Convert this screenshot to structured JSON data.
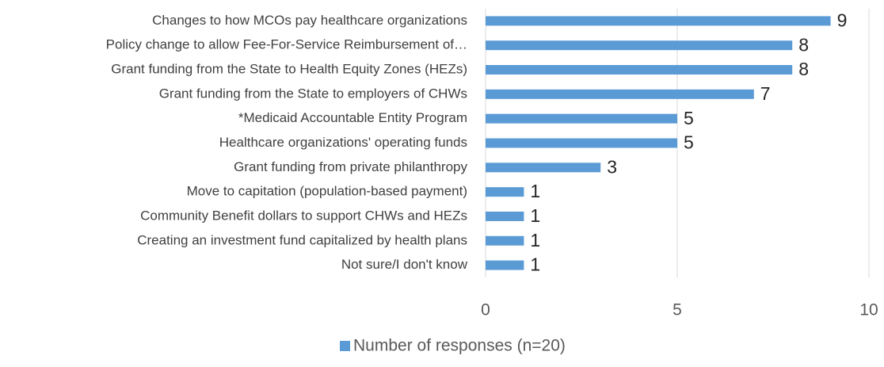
{
  "chart_data": {
    "type": "bar",
    "orientation": "horizontal",
    "categories": [
      "Changes to how MCOs pay healthcare organizations",
      "Policy change to allow Fee-For-Service Reimbursement of…",
      "Grant funding from the State to Health Equity Zones (HEZs)",
      "Grant funding from the State to employers of CHWs",
      "*Medicaid Accountable Entity Program",
      "Healthcare organizations' operating funds",
      "Grant funding from private philanthropy",
      "Move to capitation (population-based payment)",
      "Community Benefit dollars to support CHWs and HEZs",
      "Creating an investment fund capitalized by health plans",
      "Not sure/I don't know"
    ],
    "series": [
      {
        "name": "Number of responses (n=20)",
        "color": "#5b9bd5",
        "values": [
          9,
          8,
          8,
          7,
          5,
          5,
          3,
          1,
          1,
          1,
          1
        ]
      }
    ],
    "xlim": [
      0,
      10
    ],
    "xticks": [
      0,
      5,
      10
    ],
    "grid": true,
    "legend": "bottom"
  }
}
